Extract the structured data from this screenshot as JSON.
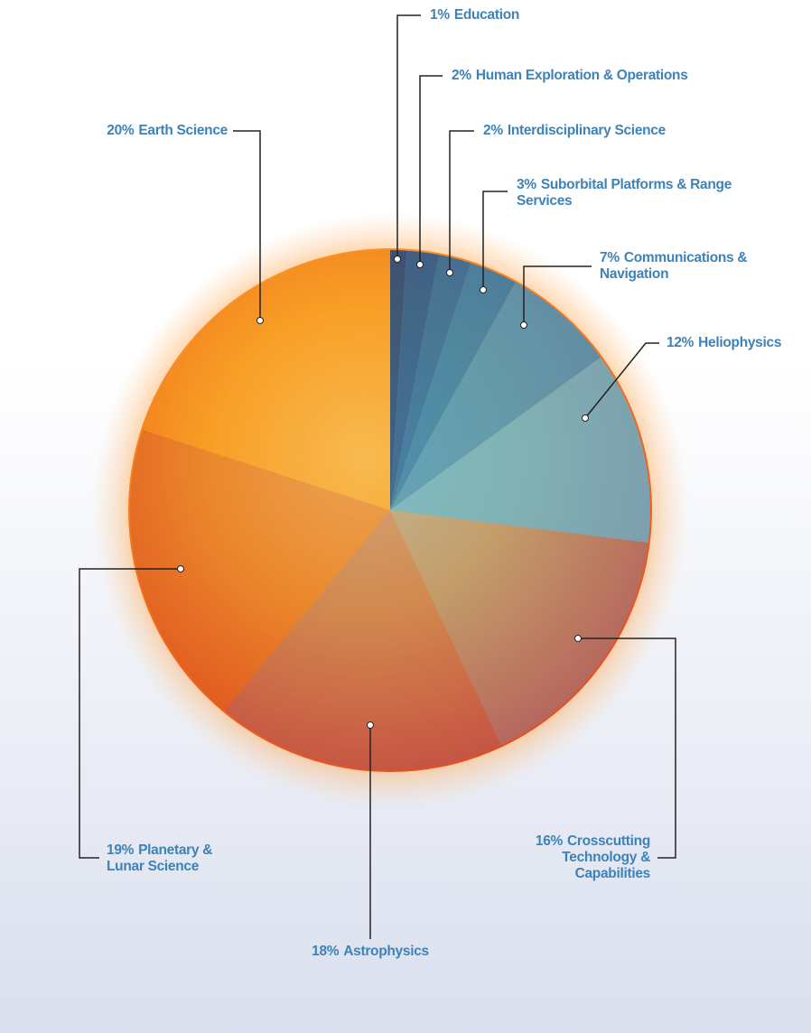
{
  "chart_data": {
    "type": "pie",
    "categories": [
      "Education",
      "Human Exploration & Operations",
      "Interdisciplinary Science",
      "Suborbital Platforms & Range Services",
      "Communications & Navigation",
      "Heliophysics",
      "Crosscutting Technology & Capabilities",
      "Astrophysics",
      "Planetary & Lunar Science",
      "Earth Science"
    ],
    "values": [
      1,
      2,
      2,
      3,
      7,
      12,
      16,
      18,
      19,
      20
    ],
    "value_labels": [
      "1%",
      "2%",
      "2%",
      "3%",
      "7%",
      "12%",
      "16%",
      "18%",
      "19%",
      "20%"
    ],
    "colors": [
      "#0a3f86",
      "#0d52a0",
      "#1566b0",
      "#1f7bbd",
      "#3a93cb",
      "#5eb2d8",
      "#7a86b4",
      "#9b5a78",
      "#d2582a",
      "#f08a1c"
    ]
  }
}
